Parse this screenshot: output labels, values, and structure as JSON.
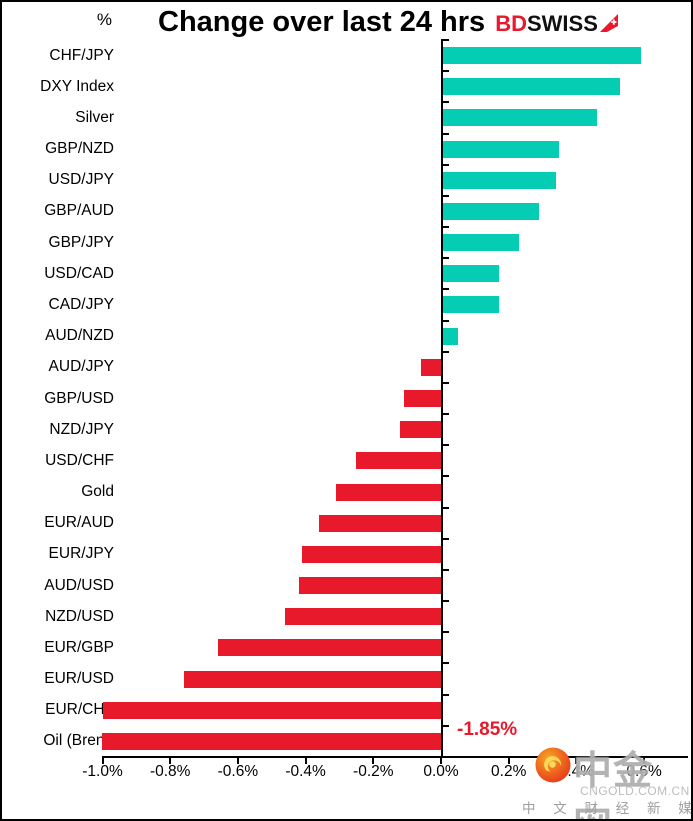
{
  "header": {
    "axis_unit": "%",
    "title": "Change over last 24 hrs",
    "logo": {
      "part1": "BD",
      "part2": "SWISS",
      "icon": "bdswiss-arrow-icon"
    }
  },
  "chart_data": {
    "type": "bar",
    "orientation": "horizontal",
    "title": "Change over last 24 hrs",
    "unit": "%",
    "categories": [
      "CHF/JPY",
      "DXY Index",
      "Silver",
      "GBP/NZD",
      "USD/JPY",
      "GBP/AUD",
      "GBP/JPY",
      "USD/CAD",
      "CAD/JPY",
      "AUD/NZD",
      "AUD/JPY",
      "GBP/USD",
      "NZD/JPY",
      "USD/CHF",
      "Gold",
      "EUR/AUD",
      "EUR/JPY",
      "AUD/USD",
      "NZD/USD",
      "EUR/GBP",
      "EUR/USD",
      "EUR/CHF",
      "Oil (Brent)"
    ],
    "values": [
      0.59,
      0.53,
      0.46,
      0.35,
      0.34,
      0.29,
      0.23,
      0.17,
      0.17,
      0.05,
      -0.06,
      -0.11,
      -0.12,
      -0.25,
      -0.31,
      -0.36,
      -0.41,
      -0.42,
      -0.46,
      -0.66,
      -0.76,
      -1.0,
      -1.85
    ],
    "xlim": [
      -1.0,
      0.73
    ],
    "clip_min": -1.0,
    "grid": false,
    "legend": "none",
    "x_ticks": [
      {
        "value": -1.0,
        "label": "-1.0%"
      },
      {
        "value": -0.8,
        "label": "-0.8%"
      },
      {
        "value": -0.6,
        "label": "-0.6%"
      },
      {
        "value": -0.4,
        "label": "-0.4%"
      },
      {
        "value": -0.2,
        "label": "-0.2%"
      },
      {
        "value": 0.0,
        "label": "0.0%"
      },
      {
        "value": 0.2,
        "label": "0.2%"
      },
      {
        "value": 0.4,
        "label": "0.4%"
      },
      {
        "value": 0.6,
        "label": "0.6%"
      }
    ],
    "colors": {
      "positive": "#04CDB4",
      "negative": "#E9192C"
    },
    "annotation": {
      "text": "-1.85%",
      "category": "Oil (Brent)",
      "color": "#E9192C"
    }
  },
  "watermark": {
    "site_name": "中金网",
    "site_domain": "CNGOLD.COM.CN",
    "tagline": "中 文 财 经 新 媒 体"
  }
}
